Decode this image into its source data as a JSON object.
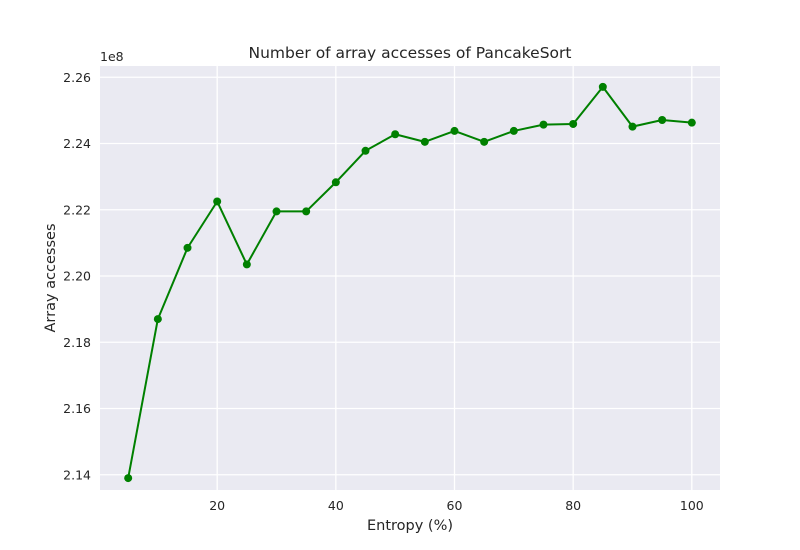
{
  "chart_data": {
    "type": "line",
    "title": "Number of array accesses of PancakeSort",
    "xlabel": "Entropy (%)",
    "ylabel": "Array accesses",
    "y_offset_label": "1e8",
    "x": [
      5,
      10,
      15,
      20,
      25,
      30,
      35,
      40,
      45,
      50,
      55,
      60,
      65,
      70,
      75,
      80,
      85,
      90,
      95,
      100
    ],
    "series": [
      {
        "values": [
          2.139,
          2.187,
          2.2085,
          2.2225,
          2.2035,
          2.2195,
          2.2195,
          2.2283,
          2.2378,
          2.2428,
          2.2405,
          2.2438,
          2.2405,
          2.2438,
          2.2457,
          2.2459,
          2.2571,
          2.2451,
          2.2471,
          2.2463
        ],
        "color": "#008000"
      }
    ],
    "xlim": [
      0.25,
      104.75
    ],
    "ylim": [
      2.1354,
      2.2634
    ],
    "x_ticks": [
      20,
      40,
      60,
      80,
      100
    ],
    "x_tick_labels": [
      "20",
      "40",
      "60",
      "80",
      "100"
    ],
    "y_ticks": [
      2.14,
      2.16,
      2.18,
      2.2,
      2.22,
      2.24,
      2.26
    ],
    "y_tick_labels": [
      "2.14",
      "2.16",
      "2.18",
      "2.20",
      "2.22",
      "2.24",
      "2.26"
    ],
    "grid": true,
    "colors": {
      "plot_bg": "#EAEAF2",
      "grid": "#FFFFFF",
      "line": "#008000"
    }
  }
}
